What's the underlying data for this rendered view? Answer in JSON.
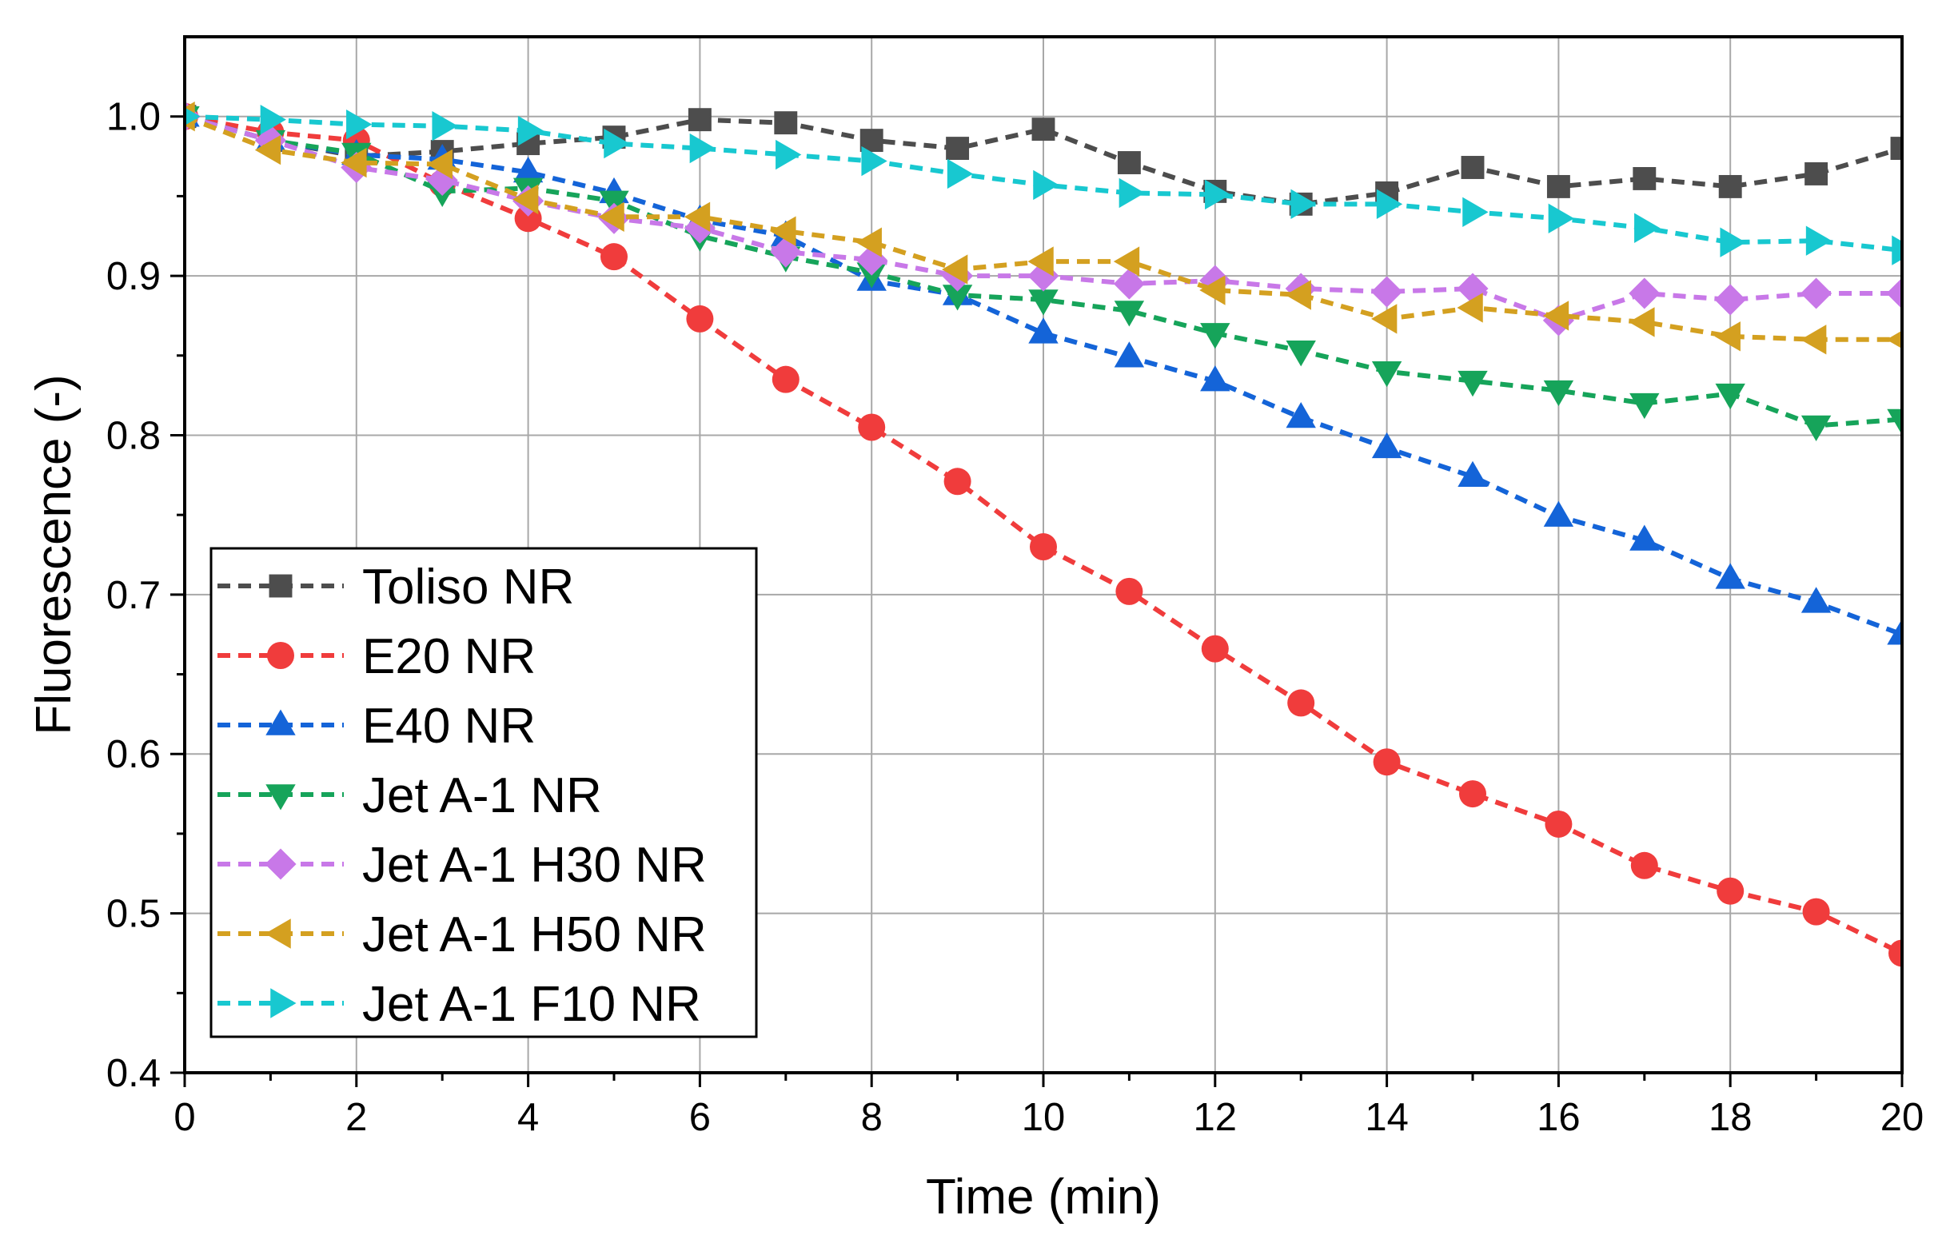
{
  "chart_data": {
    "type": "line",
    "xlabel": "Time (min)",
    "ylabel": "Fluorescence (-)",
    "xlim": [
      0,
      20
    ],
    "ylim": [
      0.4,
      1.05
    ],
    "xticks": [
      "0",
      "2",
      "4",
      "6",
      "8",
      "10",
      "12",
      "14",
      "16",
      "18",
      "20"
    ],
    "yticks": [
      "0.4",
      "0.5",
      "0.6",
      "0.7",
      "0.8",
      "0.9",
      "1.0"
    ],
    "grid": true,
    "legend_position": "bottom-left",
    "x": [
      0,
      1,
      2,
      3,
      4,
      5,
      6,
      7,
      8,
      9,
      10,
      11,
      12,
      13,
      14,
      15,
      16,
      17,
      18,
      19,
      20
    ],
    "series": [
      {
        "name": "Toliso NR",
        "color": "#4d4d4d",
        "marker": "square",
        "values": [
          1.0,
          0.985,
          0.975,
          0.978,
          0.983,
          0.987,
          0.998,
          0.996,
          0.985,
          0.98,
          0.992,
          0.971,
          0.953,
          0.945,
          0.952,
          0.968,
          0.956,
          0.961,
          0.956,
          0.964,
          0.98
        ]
      },
      {
        "name": "E20 NR",
        "color": "#f03c3c",
        "marker": "circle",
        "values": [
          1.0,
          0.99,
          0.985,
          0.958,
          0.936,
          0.912,
          0.873,
          0.835,
          0.805,
          0.771,
          0.73,
          0.702,
          0.666,
          0.632,
          0.595,
          0.575,
          0.556,
          0.53,
          0.514,
          0.501,
          0.475
        ]
      },
      {
        "name": "E40 NR",
        "color": "#1464d8",
        "marker": "triangle-up",
        "values": [
          1.0,
          0.985,
          0.976,
          0.973,
          0.965,
          0.952,
          0.935,
          0.925,
          0.897,
          0.888,
          0.864,
          0.849,
          0.834,
          0.811,
          0.792,
          0.774,
          0.749,
          0.734,
          0.71,
          0.695,
          0.675
        ]
      },
      {
        "name": "Jet A-1 NR",
        "color": "#16a45a",
        "marker": "triangle-down",
        "values": [
          1.0,
          0.985,
          0.977,
          0.953,
          0.955,
          0.947,
          0.925,
          0.912,
          0.902,
          0.888,
          0.885,
          0.878,
          0.864,
          0.853,
          0.84,
          0.834,
          0.828,
          0.82,
          0.826,
          0.806,
          0.81
        ]
      },
      {
        "name": "Jet A-1 H30 NR",
        "color": "#c878e8",
        "marker": "diamond",
        "values": [
          1.0,
          0.985,
          0.968,
          0.96,
          0.947,
          0.936,
          0.93,
          0.915,
          0.91,
          0.9,
          0.9,
          0.895,
          0.897,
          0.892,
          0.89,
          0.892,
          0.872,
          0.889,
          0.885,
          0.889,
          0.889
        ]
      },
      {
        "name": "Jet A-1 H50 NR",
        "color": "#d4a020",
        "marker": "triangle-left",
        "values": [
          1.0,
          0.979,
          0.971,
          0.97,
          0.948,
          0.937,
          0.937,
          0.928,
          0.921,
          0.904,
          0.909,
          0.909,
          0.891,
          0.888,
          0.873,
          0.88,
          0.875,
          0.871,
          0.862,
          0.86,
          0.86
        ]
      },
      {
        "name": "Jet A-1 F10 NR",
        "color": "#18c8d0",
        "marker": "triangle-right",
        "values": [
          1.0,
          0.998,
          0.995,
          0.994,
          0.991,
          0.983,
          0.98,
          0.976,
          0.972,
          0.964,
          0.957,
          0.952,
          0.951,
          0.945,
          0.945,
          0.94,
          0.936,
          0.93,
          0.921,
          0.922,
          0.916
        ]
      }
    ]
  }
}
